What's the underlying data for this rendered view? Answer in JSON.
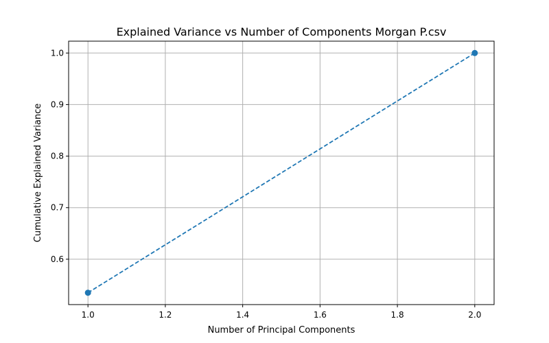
{
  "chart_data": {
    "type": "line",
    "title": "Explained Variance vs Number of Components Morgan P.csv",
    "xlabel": "Number of Principal Components",
    "ylabel": "Cumulative Explained Variance",
    "xlim": [
      0.95,
      2.05
    ],
    "ylim": [
      0.512,
      1.023
    ],
    "xticks": [
      1.0,
      1.2,
      1.4,
      1.6,
      1.8,
      2.0
    ],
    "xtick_labels": [
      "1.0",
      "1.2",
      "1.4",
      "1.6",
      "1.8",
      "2.0"
    ],
    "yticks": [
      0.6,
      0.7,
      0.8,
      0.9,
      1.0
    ],
    "ytick_labels": [
      "0.6",
      "0.7",
      "0.8",
      "0.9",
      "1.0"
    ],
    "grid": true,
    "series": [
      {
        "x": [
          1,
          2
        ],
        "y": [
          0.535,
          1.0
        ],
        "color": "#1f77b4",
        "linestyle": "dashed",
        "marker": "circle"
      }
    ]
  }
}
